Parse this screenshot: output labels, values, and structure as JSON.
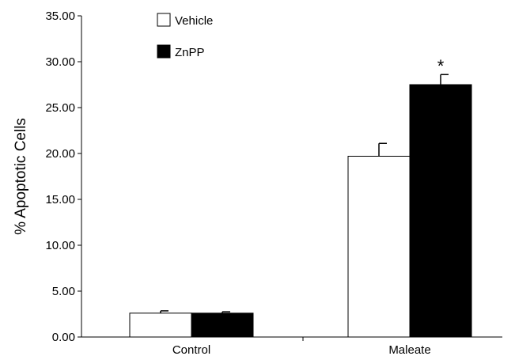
{
  "chart_data": {
    "type": "bar",
    "categories": [
      "Control",
      "Maleate"
    ],
    "ylabel": "% Apoptotic Cells",
    "ylim": [
      0,
      35
    ],
    "yticks": [
      "0.00",
      "5.00",
      "10.00",
      "15.00",
      "20.00",
      "25.00",
      "30.00",
      "35.00"
    ],
    "grid": false,
    "legend_position": "top-left",
    "series": [
      {
        "name": "Vehicle",
        "values": [
          2.6,
          19.7
        ],
        "errors": [
          0.25,
          1.4
        ],
        "color": "#ffffff"
      },
      {
        "name": "ZnPP",
        "values": [
          2.6,
          27.5
        ],
        "errors": [
          0.15,
          1.1
        ],
        "color": "#000000"
      }
    ],
    "annotations": [
      {
        "text": "*",
        "category": "Maleate",
        "series": "ZnPP"
      }
    ]
  }
}
